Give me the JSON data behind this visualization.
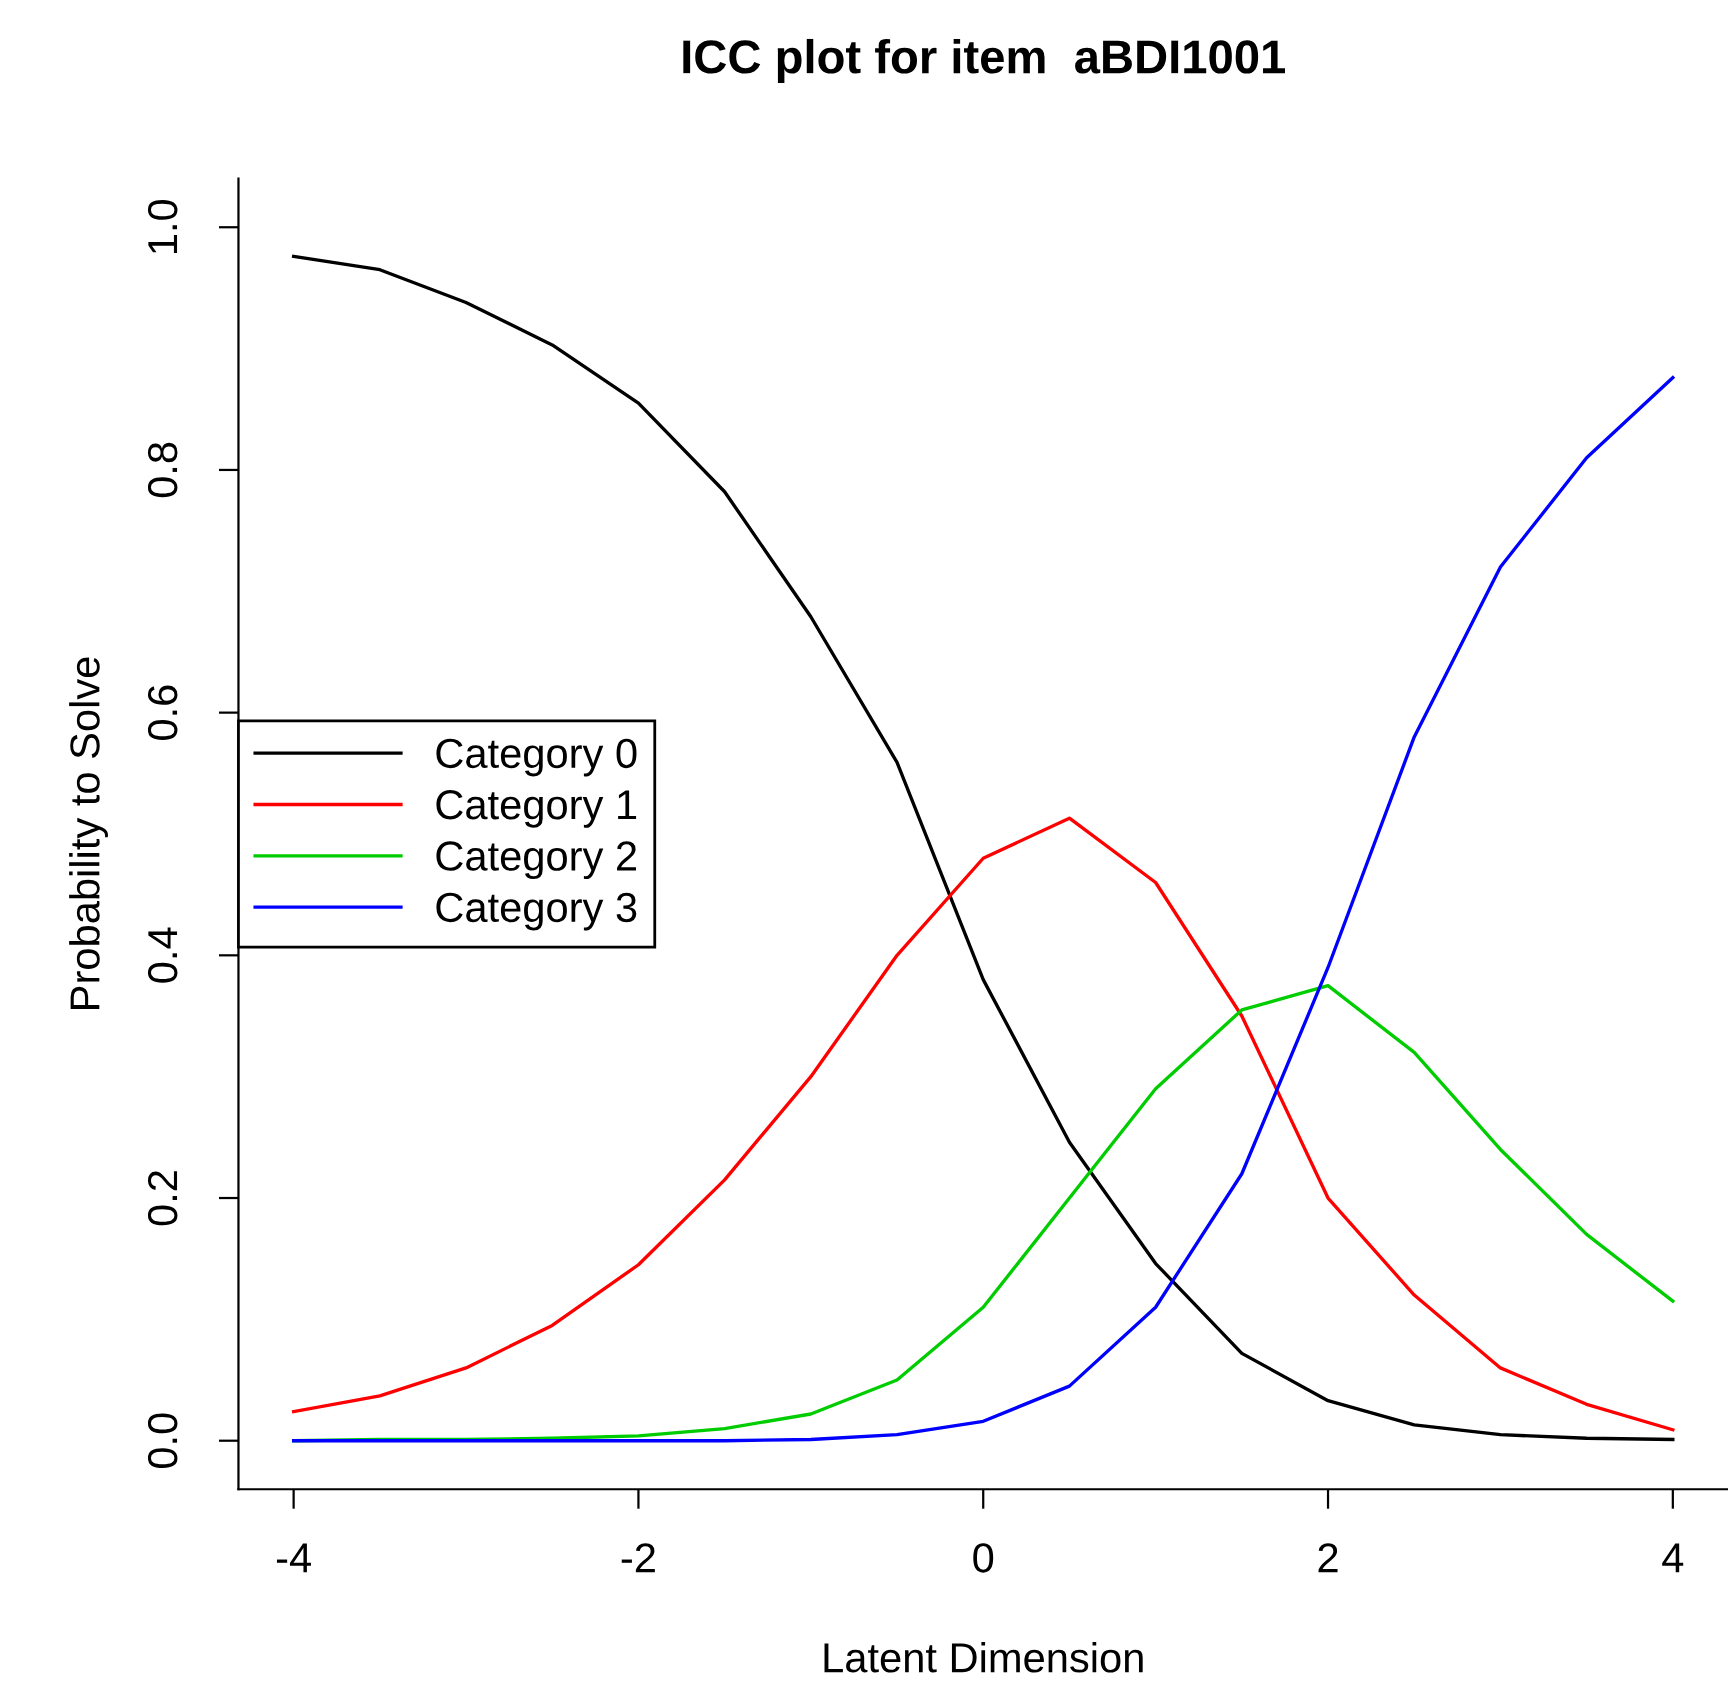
{
  "chart_data": {
    "type": "line",
    "title": "ICC plot for item  aBDI1001",
    "xlabel": "Latent Dimension",
    "ylabel": "Probability to Solve",
    "x": [
      -4,
      -3.5,
      -3,
      -2.5,
      -2,
      -1.5,
      -1,
      -0.5,
      0,
      0.5,
      1,
      1.5,
      2,
      2.5,
      3,
      3.5,
      4
    ],
    "series": [
      {
        "name": "Category 0",
        "color": "#000000",
        "values": [
          0.976,
          0.965,
          0.938,
          0.903,
          0.855,
          0.782,
          0.679,
          0.559,
          0.38,
          0.246,
          0.146,
          0.072,
          0.033,
          0.013,
          0.005,
          0.002,
          0.001
        ]
      },
      {
        "name": "Category 1",
        "color": "#ff0000",
        "values": [
          0.024,
          0.037,
          0.06,
          0.095,
          0.145,
          0.215,
          0.3,
          0.4,
          0.48,
          0.513,
          0.46,
          0.35,
          0.2,
          0.12,
          0.06,
          0.03,
          0.009
        ]
      },
      {
        "name": "Category 2",
        "color": "#00cd00",
        "values": [
          0,
          0.001,
          0.001,
          0.002,
          0.004,
          0.01,
          0.022,
          0.05,
          0.11,
          0.2,
          0.29,
          0.355,
          0.375,
          0.32,
          0.24,
          0.17,
          0.115
        ]
      },
      {
        "name": "Category 3",
        "color": "#0000ff",
        "values": [
          0,
          0,
          0,
          0,
          0,
          0,
          0.001,
          0.005,
          0.016,
          0.045,
          0.11,
          0.22,
          0.39,
          0.58,
          0.72,
          0.81,
          0.876
        ]
      }
    ],
    "xlim": [
      -4.32,
      4.32
    ],
    "ylim": [
      -0.04,
      1.04
    ],
    "xticks": [
      -4,
      -2,
      0,
      2,
      4
    ],
    "yticks": [
      {
        "value": 0,
        "label": "0.0"
      },
      {
        "value": 0.2,
        "label": "0.2"
      },
      {
        "value": 0.4,
        "label": "0.4"
      },
      {
        "value": 0.6,
        "label": "0.6"
      },
      {
        "value": 0.8,
        "label": "0.8"
      },
      {
        "value": 1,
        "label": "1.0"
      }
    ],
    "legend": "left",
    "grid": false,
    "marker": "none",
    "line_style": "solid"
  }
}
